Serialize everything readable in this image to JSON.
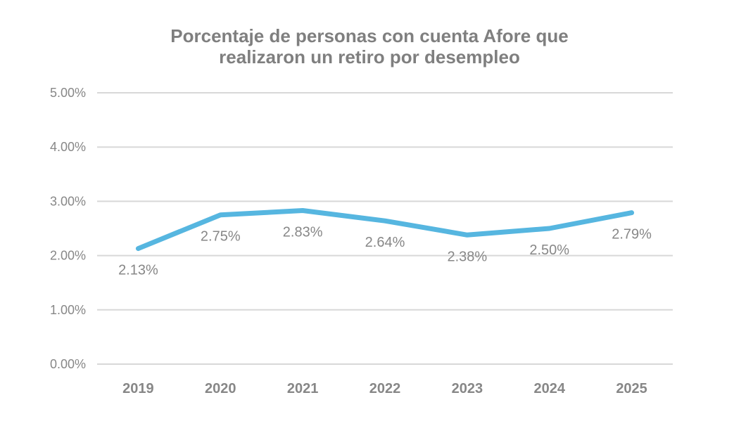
{
  "chart_data": {
    "type": "line",
    "title": "Porcentaje de personas con cuenta Afore que realizaron un retiro por desempleo",
    "title_lines": [
      "Porcentaje de personas con cuenta Afore que",
      "realizaron un retiro por desempleo"
    ],
    "categories": [
      "2019",
      "2020",
      "2021",
      "2022",
      "2023",
      "2024",
      "2025"
    ],
    "series": [
      {
        "name": "",
        "values": [
          2.13,
          2.75,
          2.83,
          2.64,
          2.38,
          2.5,
          2.79
        ]
      }
    ],
    "data_labels": [
      "2.13%",
      "2.75%",
      "2.83%",
      "2.64%",
      "2.38%",
      "2.50%",
      "2.79%"
    ],
    "y_ticks": [
      {
        "value": 0,
        "label": "0.00%"
      },
      {
        "value": 1,
        "label": "1.00%"
      },
      {
        "value": 2,
        "label": "2.00%"
      },
      {
        "value": 3,
        "label": "3.00%"
      },
      {
        "value": 4,
        "label": "4.00%"
      },
      {
        "value": 5,
        "label": "5.00%"
      }
    ],
    "xlabel": "",
    "ylabel": "",
    "ylim": [
      0,
      5
    ],
    "grid": true,
    "legend": "none",
    "colors": {
      "line": "#56B6E0",
      "grid": "#D8D8D8",
      "tick_text": "#878787",
      "data_label_text": "#878787",
      "title_text": "#7F7F7F",
      "background": "#FFFFFF"
    }
  }
}
